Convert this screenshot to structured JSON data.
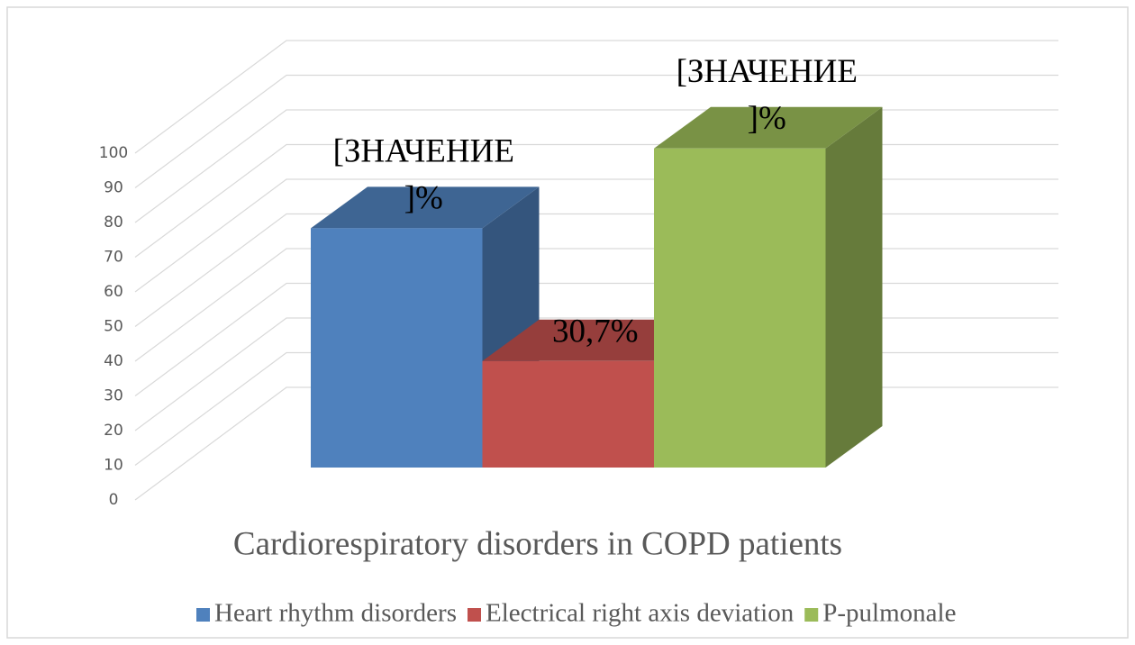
{
  "chart_data": {
    "type": "bar3d",
    "categories": [
      "Cardiorespiratory disorders in COPD patients"
    ],
    "series": [
      {
        "name": "Heart rhythm disorders",
        "color": "#4f81bd",
        "values": [
          69
        ],
        "value_labels": [
          "[ЗНАЧЕНИЕ]%"
        ]
      },
      {
        "name": "Electrical right axis deviation",
        "color": "#c0504d",
        "values": [
          30.7
        ],
        "value_labels": [
          "30,7%"
        ]
      },
      {
        "name": "P-pulmonale",
        "color": "#9bbb59",
        "values": [
          92
        ],
        "value_labels": [
          "[ЗНАЧЕНИЕ]%"
        ]
      }
    ],
    "ylim": [
      0,
      100
    ],
    "yticks": [
      0,
      10,
      20,
      30,
      40,
      50,
      60,
      70,
      80,
      90,
      100
    ],
    "grid": true,
    "legend": "bottom"
  }
}
